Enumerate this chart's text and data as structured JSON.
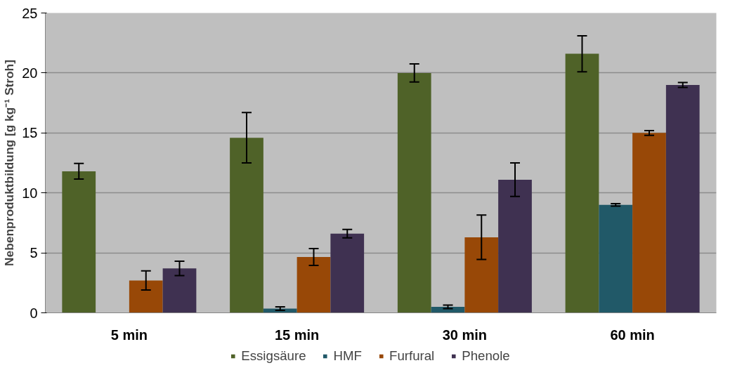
{
  "chart_data": {
    "type": "bar",
    "ylabel": "Nebenproduktbildung [g kg⁻¹ Stroh]",
    "categories": [
      "5 min",
      "15 min",
      "30 min",
      "60 min"
    ],
    "series": [
      {
        "name": "Essigsäure",
        "color": "#4f6228",
        "values": [
          11.8,
          14.6,
          20.0,
          21.6
        ],
        "errors": [
          0.65,
          2.1,
          0.75,
          1.5
        ]
      },
      {
        "name": "HMF",
        "color": "#215968",
        "values": [
          null,
          0.35,
          0.5,
          9.0
        ],
        "errors": [
          null,
          0.15,
          0.15,
          0.1
        ]
      },
      {
        "name": "Furfural",
        "color": "#984807",
        "values": [
          2.7,
          4.65,
          6.3,
          15.0
        ],
        "errors": [
          0.8,
          0.7,
          1.85,
          0.2
        ]
      },
      {
        "name": "Phenole",
        "color": "#3f3151",
        "values": [
          3.7,
          6.6,
          11.1,
          19.0
        ],
        "errors": [
          0.6,
          0.35,
          1.4,
          0.2
        ]
      }
    ],
    "ylim": [
      0,
      25
    ],
    "yticks": [
      0,
      5,
      10,
      15,
      20,
      25
    ],
    "grid": "y",
    "legend": "bottom"
  }
}
